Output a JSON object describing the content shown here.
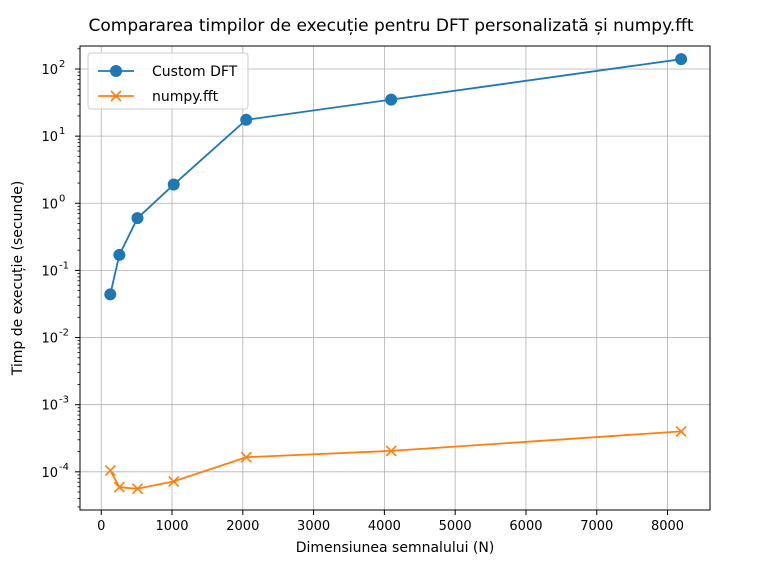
{
  "chart_data": {
    "type": "line",
    "title": "Compararea timpilor de execuție pentru DFT personalizată și numpy.fft",
    "xlabel": "Dimensiunea semnalului (N)",
    "ylabel": "Timp de execuție (secunde)",
    "x_scale": "linear",
    "y_scale": "log",
    "xlim": [
      -300,
      8600
    ],
    "ylim": [
      2.7e-05,
      220
    ],
    "x_ticks": [
      0,
      1000,
      2000,
      3000,
      4000,
      5000,
      6000,
      7000,
      8000
    ],
    "x_tick_labels": [
      "0",
      "1000",
      "2000",
      "3000",
      "4000",
      "5000",
      "6000",
      "7000",
      "8000"
    ],
    "y_ticks": [
      0.0001,
      0.001,
      0.01,
      0.1,
      1,
      10,
      100
    ],
    "y_tick_exponents": [
      "-4",
      "-3",
      "-2",
      "-1",
      "0",
      "1",
      "2"
    ],
    "y_tick_base": "10",
    "grid": true,
    "legend_position": "upper-left",
    "series": [
      {
        "name": "Custom DFT",
        "color": "#1f77b4",
        "marker": "circle",
        "x": [
          128,
          256,
          512,
          1024,
          2048,
          4096,
          8192
        ],
        "y": [
          0.044,
          0.17,
          0.6,
          1.9,
          17.5,
          35,
          140
        ]
      },
      {
        "name": "numpy.fft",
        "color": "#ff7f0e",
        "marker": "x",
        "x": [
          128,
          256,
          512,
          1024,
          2048,
          4096,
          8192
        ],
        "y": [
          0.000105,
          5.9e-05,
          5.6e-05,
          7.2e-05,
          0.000165,
          0.000205,
          0.0004
        ]
      }
    ]
  }
}
